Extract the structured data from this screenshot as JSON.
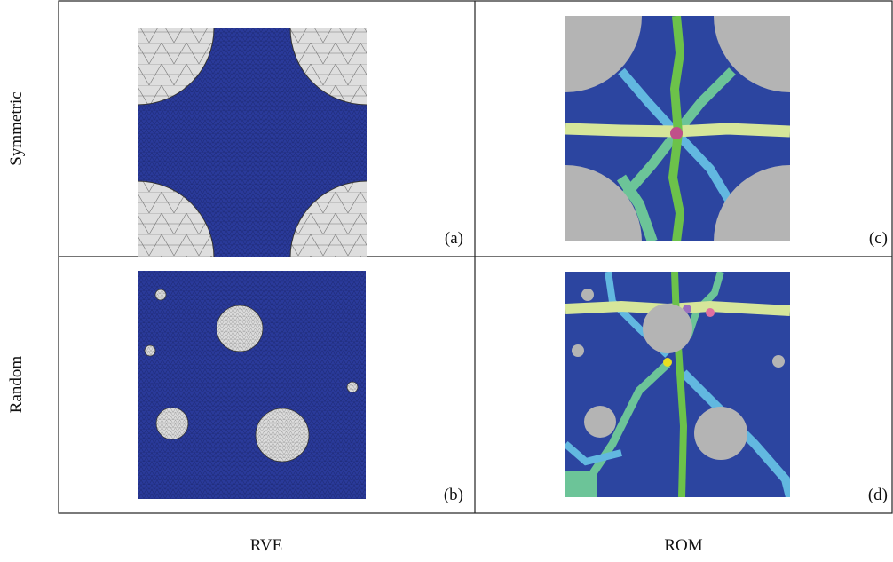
{
  "rows": [
    {
      "label": "Symmetric",
      "panels": [
        "(a)",
        "(c)"
      ]
    },
    {
      "label": "Random",
      "panels": [
        "(b)",
        "(d)"
      ]
    }
  ],
  "columns": [
    "RVE",
    "ROM"
  ]
}
